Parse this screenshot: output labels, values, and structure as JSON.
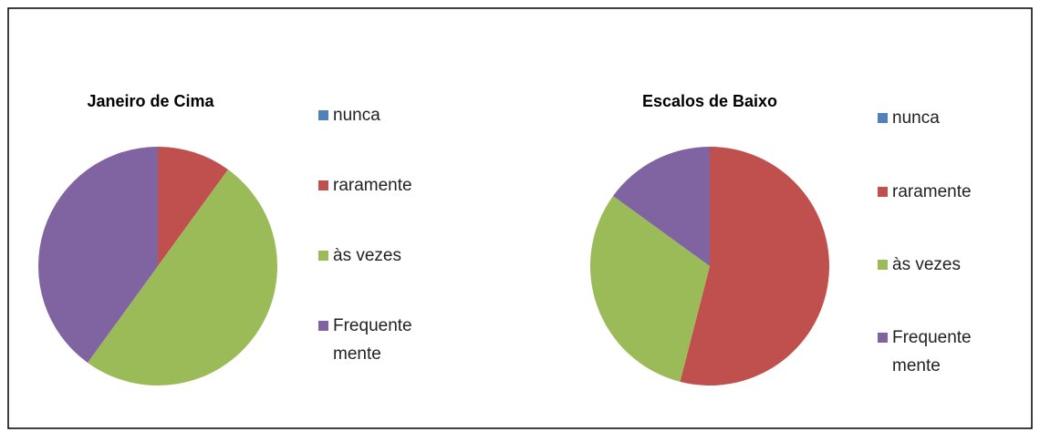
{
  "chart_data": [
    {
      "type": "pie",
      "title": "Janeiro de Cima",
      "categories": [
        "nunca",
        "raramente",
        "às vezes",
        "Frequente mente"
      ],
      "values": [
        0,
        10,
        50,
        40
      ],
      "colors": [
        "#4f81bd",
        "#c0504d",
        "#9bbb59",
        "#8064a2"
      ]
    },
    {
      "type": "pie",
      "title": "Escalos de Baixo",
      "categories": [
        "nunca",
        "raramente",
        "às vezes",
        "Frequente mente"
      ],
      "values": [
        0,
        54,
        31,
        15
      ],
      "colors": [
        "#4f81bd",
        "#c0504d",
        "#9bbb59",
        "#8064a2"
      ]
    }
  ]
}
